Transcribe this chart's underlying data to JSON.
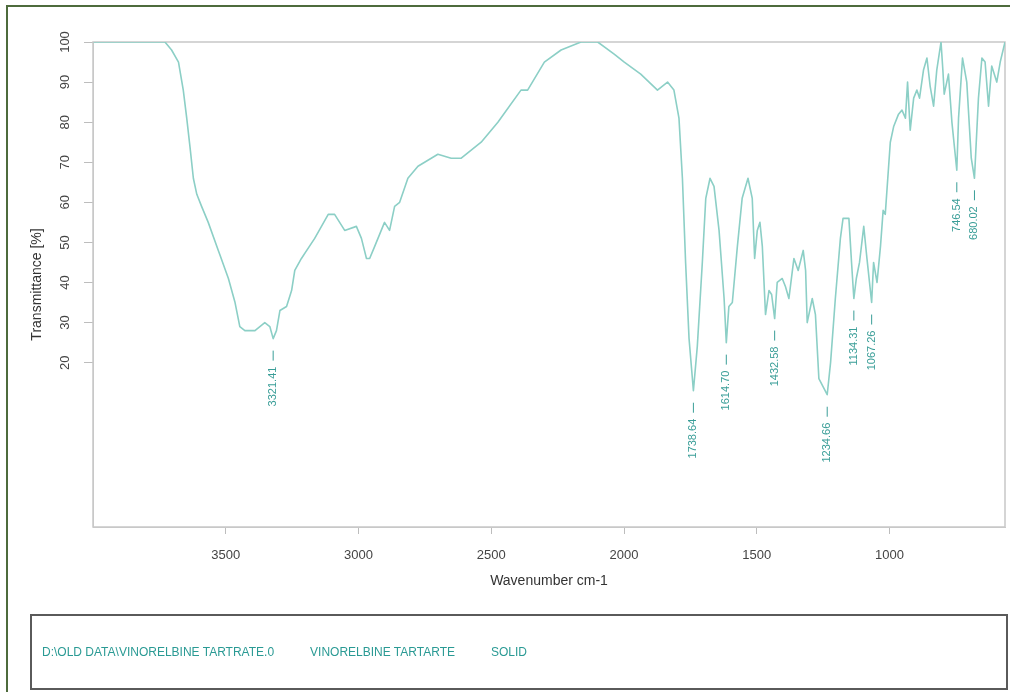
{
  "chart_data": {
    "type": "line",
    "xlabel": "Wavenumber cm-1",
    "ylabel": "Transmittance [%]",
    "x": [
      3996,
      3850,
      3729,
      3704,
      3678,
      3660,
      3647,
      3635,
      3622,
      3609,
      3591,
      3566,
      3528,
      3490,
      3465,
      3447,
      3428,
      3390,
      3353,
      3334,
      3321.41,
      3309,
      3296,
      3271,
      3252,
      3240,
      3215,
      3165,
      3114,
      3090,
      3052,
      3008,
      2989,
      2970,
      2958,
      2939,
      2902,
      2883,
      2864,
      2845,
      2814,
      2776,
      2701,
      2651,
      2613,
      2538,
      2475,
      2388,
      2363,
      2300,
      2237,
      2162,
      2099,
      2037,
      1999,
      1937,
      1874,
      1836,
      1812,
      1793,
      1780,
      1768,
      1755,
      1738.64,
      1724,
      1705,
      1692,
      1676,
      1661,
      1642,
      1623,
      1614.7,
      1605,
      1592,
      1573,
      1555,
      1533,
      1517,
      1508,
      1498,
      1488,
      1479,
      1467,
      1454,
      1444,
      1432.58,
      1423,
      1404,
      1392,
      1379,
      1360,
      1344,
      1325,
      1316,
      1310,
      1291,
      1279,
      1266,
      1234.66,
      1222,
      1204,
      1185,
      1175,
      1153,
      1143,
      1134.31,
      1125,
      1113,
      1097,
      1085,
      1067.26,
      1060,
      1047,
      1034,
      1024,
      1016,
      997,
      984,
      966,
      953,
      940,
      932,
      922,
      909,
      897,
      887,
      872,
      859,
      847,
      834,
      822,
      806,
      799,
      794,
      778,
      765,
      746.54,
      740,
      725,
      709,
      692,
      680.02,
      665,
      652,
      640,
      627,
      615,
      596,
      583,
      565
    ],
    "series": [
      {
        "color": "#8ccfc6",
        "values": [
          100,
          100,
          100,
          98,
          95,
          88,
          81,
          74,
          66,
          62,
          59,
          55,
          48,
          41,
          35,
          29,
          28,
          28,
          30,
          29,
          26,
          28,
          33,
          34,
          38,
          43,
          46,
          51,
          57,
          57,
          53,
          54,
          51,
          46,
          46,
          49,
          55,
          53,
          59,
          60,
          66,
          69,
          72,
          71,
          71,
          75,
          80,
          88,
          88,
          95,
          98,
          100,
          100,
          97,
          95,
          92,
          88,
          90,
          88,
          81,
          66,
          45,
          26,
          13,
          24,
          45,
          61,
          66,
          64,
          53,
          36,
          25,
          34,
          35,
          49,
          61,
          66,
          61,
          46,
          53,
          55,
          49,
          32,
          38,
          37,
          31,
          40,
          41,
          39,
          36,
          46,
          43,
          48,
          43,
          30,
          36,
          32,
          16,
          12,
          20,
          36,
          51,
          56,
          56,
          45,
          36,
          41,
          45,
          54,
          46,
          35,
          45,
          40,
          49,
          58,
          57,
          75,
          79,
          82,
          83,
          81,
          90,
          78,
          86,
          88,
          86,
          93,
          96,
          89,
          84,
          93,
          100,
          93,
          87,
          92,
          80,
          68,
          81,
          96,
          90,
          71,
          66,
          86,
          96,
          95,
          84,
          94,
          90,
          95,
          100
        ]
      }
    ],
    "xlim": [
      4000,
      565
    ],
    "xticks": [
      3500,
      3000,
      2500,
      2000,
      1500,
      1000
    ],
    "ylim": [
      -21,
      100
    ],
    "yticks": [
      20,
      30,
      40,
      50,
      60,
      70,
      80,
      90,
      100
    ],
    "line_style": "solid",
    "annotations": [
      {
        "text": "3321.41",
        "x": 3321.41,
        "y": 26
      },
      {
        "text": "1738.64",
        "x": 1738.64,
        "y": 13
      },
      {
        "text": "1614.70",
        "x": 1614.7,
        "y": 25
      },
      {
        "text": "1432.58",
        "x": 1432.58,
        "y": 31
      },
      {
        "text": "1234.66",
        "x": 1234.66,
        "y": 12
      },
      {
        "text": "1134.31",
        "x": 1134.31,
        "y": 36
      },
      {
        "text": "1067.26",
        "x": 1067.26,
        "y": 35
      },
      {
        "text": "746.54",
        "x": 746.54,
        "y": 68
      },
      {
        "text": "680.02",
        "x": 680.02,
        "y": 66
      },
      "D:\\OLD DATA\\VINORELBINE TARTRATE.0",
      "VINORELBINE TARTARTE",
      "SOLID"
    ]
  }
}
